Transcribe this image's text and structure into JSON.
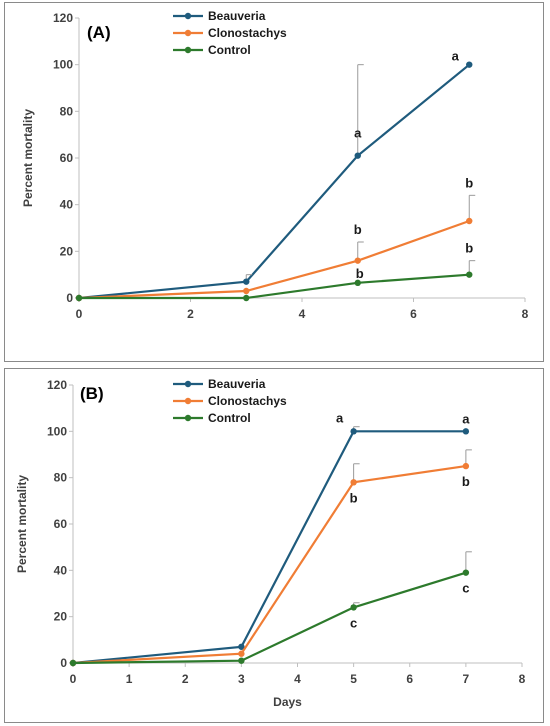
{
  "colors": {
    "Beauveria": "#1f5b7d",
    "Clonostachys": "#f07d35",
    "Control": "#2d7a2c"
  },
  "chart_data": [
    {
      "type": "line",
      "panel_label": "(A)",
      "xlabel": "",
      "ylabel": "Percent mortality",
      "xlim": [
        0,
        8
      ],
      "ylim": [
        0,
        120
      ],
      "xticks": [
        0,
        2,
        4,
        6,
        8
      ],
      "yticks": [
        0,
        20,
        40,
        60,
        80,
        100,
        120
      ],
      "grid": false,
      "legend": "top-center",
      "x": [
        0,
        3,
        5,
        7
      ],
      "series": [
        {
          "name": "Beauveria",
          "values": [
            0,
            7,
            61,
            100
          ],
          "errors": [
            0,
            3,
            39,
            0
          ],
          "letters": [
            "",
            "",
            "a",
            "a"
          ]
        },
        {
          "name": "Clonostachys",
          "values": [
            0,
            3,
            16,
            33
          ],
          "errors": [
            0,
            0,
            8,
            11
          ],
          "letters": [
            "",
            "",
            "b",
            "b"
          ]
        },
        {
          "name": "Control",
          "values": [
            0,
            0,
            6.5,
            10
          ],
          "errors": [
            0,
            0,
            0,
            6
          ],
          "letters": [
            "",
            "",
            "b",
            "b"
          ]
        }
      ]
    },
    {
      "type": "line",
      "panel_label": "(B)",
      "xlabel": "Days",
      "ylabel": "Percent mortality",
      "xlim": [
        0,
        8
      ],
      "ylim": [
        0,
        120
      ],
      "xticks": [
        0,
        1,
        2,
        3,
        4,
        5,
        6,
        7,
        8
      ],
      "yticks": [
        0,
        20,
        40,
        60,
        80,
        100,
        120
      ],
      "grid": false,
      "legend": "top-center",
      "x": [
        0,
        3,
        5,
        7
      ],
      "series": [
        {
          "name": "Beauveria",
          "values": [
            0,
            7,
            100,
            100
          ],
          "errors": [
            0,
            0,
            2,
            0
          ],
          "letters": [
            "",
            "",
            "a",
            "a"
          ]
        },
        {
          "name": "Clonostachys",
          "values": [
            0,
            4,
            78,
            85
          ],
          "errors": [
            0,
            0,
            8,
            7
          ],
          "letters": [
            "",
            "",
            "b",
            "b"
          ]
        },
        {
          "name": "Control",
          "values": [
            0,
            1,
            24,
            39
          ],
          "errors": [
            0,
            0,
            2,
            9
          ],
          "letters": [
            "",
            "",
            "c",
            "c"
          ]
        }
      ]
    }
  ]
}
